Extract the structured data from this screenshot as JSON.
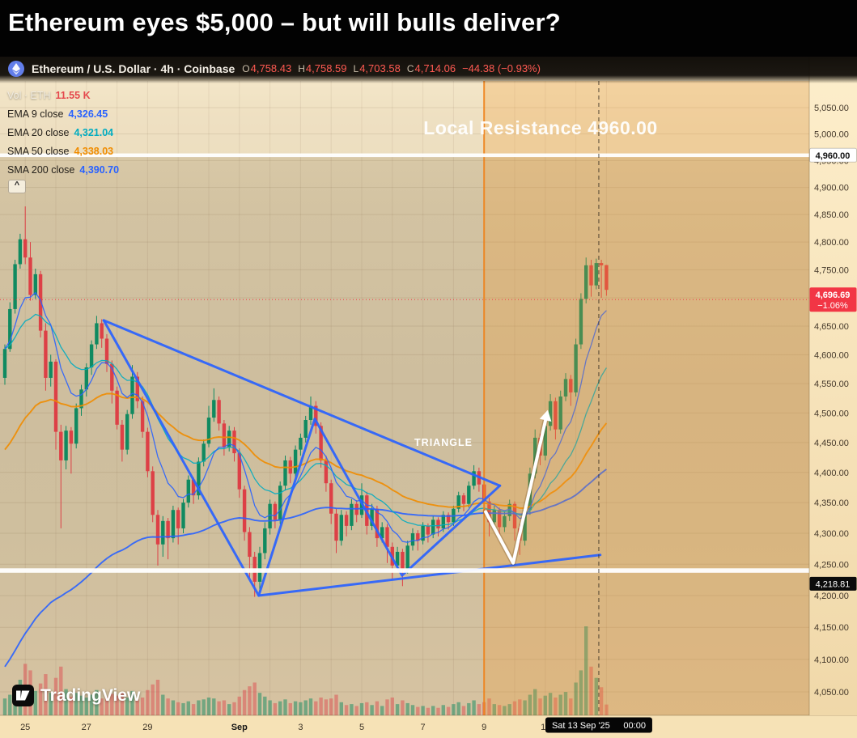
{
  "headline": {
    "title": "Ethereum eyes $5,000 – but will bulls deliver?"
  },
  "chart_header": {
    "title": "Ethereum / U.S. Dollar · 4h · Coinbase",
    "symbol": "Ethereum / U.S. Dollar",
    "interval": "4h",
    "exchange": "Coinbase",
    "values_color": "#ff5a52",
    "ohlc": {
      "o_label": "O",
      "o": "4,758.43",
      "h_label": "H",
      "h": "4,758.59",
      "l_label": "L",
      "l": "4,703.58",
      "c_label": "C",
      "c": "4,714.06",
      "change": "−44.38 (−0.93%)"
    }
  },
  "legend": {
    "volume": {
      "label": "Vol · ETH",
      "value": "11.55 K",
      "color": "#e5484d"
    },
    "indicators": [
      {
        "label": "EMA 9 close",
        "value": "4,326.45",
        "color": "#2962ff"
      },
      {
        "label": "EMA 20 close",
        "value": "4,321.04",
        "color": "#00acc1"
      },
      {
        "label": "SMA 50 close",
        "value": "4,338.03",
        "color": "#f08c00"
      },
      {
        "label": "SMA 200 close",
        "value": "4,390.70",
        "color": "#2962ff"
      }
    ]
  },
  "annotations": {
    "resistance": {
      "text": "Local Resistance 4960.00",
      "price": 4960,
      "axis_label": "4,960.00"
    },
    "support": {
      "price": 4240,
      "axis_value": 4218.81,
      "axis_label": "4,218.81"
    },
    "triangle_label": "TRIANGLE",
    "last_price": {
      "value": "4,696.69",
      "change_pct": "−1.06%",
      "price": 4696.69
    },
    "crosshair_date": "Sat 13 Sep '25",
    "crosshair_time": "00:00",
    "crosshair_index": 116.5,
    "highlight_start_index": 94
  },
  "axes": {
    "price_ticks": [
      {
        "value": 5050,
        "label": "5,050.00"
      },
      {
        "value": 5000,
        "label": "5,000.00"
      },
      {
        "value": 4950,
        "label": "4,950.00"
      },
      {
        "value": 4900,
        "label": "4,900.00"
      },
      {
        "value": 4850,
        "label": "4,850.00"
      },
      {
        "value": 4800,
        "label": "4,800.00"
      },
      {
        "value": 4750,
        "label": "4,750.00"
      },
      {
        "value": 4700,
        "label": "4,700.00"
      },
      {
        "value": 4650,
        "label": "4,650.00"
      },
      {
        "value": 4600,
        "label": "4,600.00"
      },
      {
        "value": 4550,
        "label": "4,550.00"
      },
      {
        "value": 4500,
        "label": "4,500.00"
      },
      {
        "value": 4450,
        "label": "4,450.00"
      },
      {
        "value": 4400,
        "label": "4,400.00"
      },
      {
        "value": 4350,
        "label": "4,350.00"
      },
      {
        "value": 4300,
        "label": "4,300.00"
      },
      {
        "value": 4250,
        "label": "4,250.00"
      },
      {
        "value": 4200,
        "label": "4,200.00"
      },
      {
        "value": 4150,
        "label": "4,150.00"
      },
      {
        "value": 4100,
        "label": "4,100.00"
      },
      {
        "value": 4050,
        "label": "4,050.00"
      }
    ],
    "time_labels": [
      {
        "index": 4,
        "label": "25"
      },
      {
        "index": 16,
        "label": "27"
      },
      {
        "index": 28,
        "label": "29"
      },
      {
        "index": 46,
        "label": "Sep"
      },
      {
        "index": 58,
        "label": "3"
      },
      {
        "index": 70,
        "label": "5"
      },
      {
        "index": 82,
        "label": "7"
      },
      {
        "index": 94,
        "label": "9"
      },
      {
        "index": 106,
        "label": "11"
      }
    ]
  },
  "watermark": {
    "text": "TradingView"
  },
  "chart_data": {
    "type": "candlestick",
    "symbol": "ETHUSD",
    "interval": "4h",
    "price_scale": "log",
    "visible_price_range": [
      4010,
      5060
    ],
    "volume_unit": "K",
    "up_color": "#108a60",
    "down_color": "#dd4046",
    "candles": [
      [
        4560,
        4618,
        4548,
        4610,
        18
      ],
      [
        4610,
        4692,
        4605,
        4680,
        22
      ],
      [
        4680,
        4768,
        4672,
        4760,
        30
      ],
      [
        4760,
        4815,
        4752,
        4805,
        38
      ],
      [
        4805,
        4865,
        4760,
        4772,
        55
      ],
      [
        4772,
        4800,
        4695,
        4705,
        48
      ],
      [
        4705,
        4752,
        4698,
        4742,
        26
      ],
      [
        4742,
        4748,
        4630,
        4642,
        34
      ],
      [
        4642,
        4655,
        4538,
        4560,
        44
      ],
      [
        4560,
        4600,
        4545,
        4588,
        24
      ],
      [
        4588,
        4592,
        4438,
        4468,
        40
      ],
      [
        4468,
        4480,
        4308,
        4420,
        52
      ],
      [
        4420,
        4478,
        4405,
        4470,
        28
      ],
      [
        4470,
        4476,
        4398,
        4448,
        20
      ],
      [
        4448,
        4516,
        4440,
        4508,
        24
      ],
      [
        4508,
        4548,
        4495,
        4540,
        21
      ],
      [
        4540,
        4585,
        4528,
        4578,
        19
      ],
      [
        4578,
        4625,
        4565,
        4618,
        22
      ],
      [
        4618,
        4668,
        4610,
        4655,
        27
      ],
      [
        4655,
        4662,
        4612,
        4628,
        18
      ],
      [
        4628,
        4636,
        4570,
        4584,
        20
      ],
      [
        4584,
        4590,
        4516,
        4538,
        23
      ],
      [
        4538,
        4545,
        4472,
        4480,
        21
      ],
      [
        4480,
        4488,
        4418,
        4438,
        25
      ],
      [
        4438,
        4505,
        4430,
        4498,
        19
      ],
      [
        4498,
        4582,
        4490,
        4562,
        26
      ],
      [
        4562,
        4570,
        4508,
        4520,
        17
      ],
      [
        4520,
        4528,
        4458,
        4468,
        19
      ],
      [
        4468,
        4475,
        4392,
        4402,
        27
      ],
      [
        4402,
        4410,
        4318,
        4330,
        33
      ],
      [
        4330,
        4338,
        4248,
        4282,
        38
      ],
      [
        4282,
        4328,
        4262,
        4320,
        22
      ],
      [
        4320,
        4325,
        4258,
        4292,
        18
      ],
      [
        4292,
        4345,
        4285,
        4338,
        16
      ],
      [
        4338,
        4342,
        4282,
        4308,
        14
      ],
      [
        4308,
        4356,
        4300,
        4350,
        13
      ],
      [
        4350,
        4395,
        4342,
        4388,
        15
      ],
      [
        4388,
        4392,
        4348,
        4362,
        12
      ],
      [
        4362,
        4425,
        4355,
        4418,
        16
      ],
      [
        4418,
        4455,
        4410,
        4448,
        17
      ],
      [
        4448,
        4512,
        4442,
        4492,
        19
      ],
      [
        4492,
        4542,
        4485,
        4522,
        18
      ],
      [
        4522,
        4528,
        4470,
        4482,
        15
      ],
      [
        4482,
        4488,
        4428,
        4442,
        16
      ],
      [
        4442,
        4478,
        4435,
        4470,
        12
      ],
      [
        4470,
        4476,
        4418,
        4432,
        14
      ],
      [
        4432,
        4440,
        4358,
        4372,
        20
      ],
      [
        4372,
        4378,
        4288,
        4302,
        27
      ],
      [
        4302,
        4310,
        4228,
        4262,
        31
      ],
      [
        4262,
        4270,
        4198,
        4222,
        35
      ],
      [
        4222,
        4278,
        4205,
        4268,
        24
      ],
      [
        4268,
        4318,
        4258,
        4308,
        20
      ],
      [
        4308,
        4355,
        4298,
        4348,
        16
      ],
      [
        4348,
        4352,
        4308,
        4322,
        13
      ],
      [
        4322,
        4385,
        4315,
        4378,
        15
      ],
      [
        4378,
        4428,
        4370,
        4420,
        17
      ],
      [
        4420,
        4426,
        4382,
        4398,
        13
      ],
      [
        4398,
        4445,
        4390,
        4438,
        15
      ],
      [
        4438,
        4465,
        4428,
        4458,
        14
      ],
      [
        4458,
        4495,
        4450,
        4488,
        16
      ],
      [
        4488,
        4528,
        4480,
        4512,
        18
      ],
      [
        4512,
        4520,
        4465,
        4478,
        15
      ],
      [
        4478,
        4484,
        4408,
        4420,
        19
      ],
      [
        4420,
        4428,
        4368,
        4382,
        17
      ],
      [
        4382,
        4388,
        4315,
        4332,
        18
      ],
      [
        4332,
        4340,
        4268,
        4288,
        22
      ],
      [
        4288,
        4338,
        4280,
        4330,
        14
      ],
      [
        4330,
        4336,
        4295,
        4312,
        11
      ],
      [
        4312,
        4356,
        4305,
        4348,
        12
      ],
      [
        4348,
        4354,
        4318,
        4330,
        10
      ],
      [
        4330,
        4382,
        4325,
        4362,
        13
      ],
      [
        4362,
        4368,
        4298,
        4312,
        14
      ],
      [
        4312,
        4348,
        4305,
        4340,
        11
      ],
      [
        4340,
        4345,
        4278,
        4292,
        15
      ],
      [
        4292,
        4318,
        4285,
        4310,
        10
      ],
      [
        4310,
        4315,
        4252,
        4278,
        17
      ],
      [
        4278,
        4285,
        4225,
        4248,
        19
      ],
      [
        4248,
        4278,
        4240,
        4270,
        12
      ],
      [
        4270,
        4275,
        4215,
        4242,
        16
      ],
      [
        4242,
        4288,
        4235,
        4280,
        13
      ],
      [
        4280,
        4308,
        4272,
        4300,
        11
      ],
      [
        4300,
        4305,
        4272,
        4288,
        9
      ],
      [
        4288,
        4318,
        4282,
        4312,
        10
      ],
      [
        4312,
        4316,
        4285,
        4298,
        8
      ],
      [
        4298,
        4328,
        4292,
        4322,
        10
      ],
      [
        4322,
        4326,
        4295,
        4308,
        8
      ],
      [
        4308,
        4336,
        4302,
        4330,
        11
      ],
      [
        4330,
        4334,
        4306,
        4318,
        9
      ],
      [
        4318,
        4345,
        4312,
        4340,
        12
      ],
      [
        4340,
        4368,
        4334,
        4362,
        14
      ],
      [
        4362,
        4366,
        4336,
        4348,
        10
      ],
      [
        4348,
        4385,
        4342,
        4378,
        13
      ],
      [
        4378,
        4412,
        4372,
        4402,
        16
      ],
      [
        4402,
        4408,
        4368,
        4380,
        12
      ],
      [
        4380,
        4385,
        4338,
        4352,
        14
      ],
      [
        4352,
        4358,
        4295,
        4318,
        18
      ],
      [
        4318,
        4345,
        4310,
        4338,
        12
      ],
      [
        4338,
        4342,
        4298,
        4310,
        11
      ],
      [
        4310,
        4336,
        4302,
        4328,
        10
      ],
      [
        4328,
        4355,
        4320,
        4348,
        12
      ],
      [
        4348,
        4352,
        4288,
        4308,
        15
      ],
      [
        4308,
        4315,
        4265,
        4288,
        17
      ],
      [
        4288,
        4345,
        4280,
        4338,
        16
      ],
      [
        4338,
        4408,
        4330,
        4398,
        22
      ],
      [
        4398,
        4472,
        4390,
        4458,
        28
      ],
      [
        4458,
        4465,
        4412,
        4428,
        18
      ],
      [
        4428,
        4488,
        4420,
        4478,
        21
      ],
      [
        4478,
        4532,
        4470,
        4520,
        24
      ],
      [
        4520,
        4526,
        4455,
        4472,
        19
      ],
      [
        4472,
        4538,
        4465,
        4528,
        22
      ],
      [
        4528,
        4568,
        4520,
        4558,
        25
      ],
      [
        4558,
        4565,
        4512,
        4535,
        18
      ],
      [
        4535,
        4628,
        4528,
        4618,
        35
      ],
      [
        4618,
        4708,
        4610,
        4698,
        48
      ],
      [
        4698,
        4772,
        4690,
        4758,
        95
      ],
      [
        4758,
        4768,
        4702,
        4722,
        52
      ],
      [
        4722,
        4770,
        4715,
        4762,
        40
      ],
      [
        4762,
        4768,
        4700,
        4758,
        30
      ],
      [
        4758.43,
        4758.59,
        4703.58,
        4714.06,
        11.55
      ]
    ],
    "drawings": {
      "triangle_zigzag_ip": [
        [
          19.4,
          4660
        ],
        [
          49.8,
          4200
        ],
        [
          60.8,
          4490
        ],
        [
          77.9,
          4232
        ],
        [
          97.1,
          4378
        ]
      ],
      "triangle_upper_ip": [
        [
          19.4,
          4660
        ],
        [
          97.1,
          4378
        ]
      ],
      "triangle_lower_ip": [
        [
          49.8,
          4200
        ],
        [
          116.8,
          4265
        ]
      ],
      "triangle_color": "#2962ff",
      "arrow_ip": [
        [
          94.3,
          4335
        ],
        [
          99.7,
          4252
        ],
        [
          106.5,
          4505
        ]
      ],
      "arrow_color": "#ffffff"
    }
  }
}
